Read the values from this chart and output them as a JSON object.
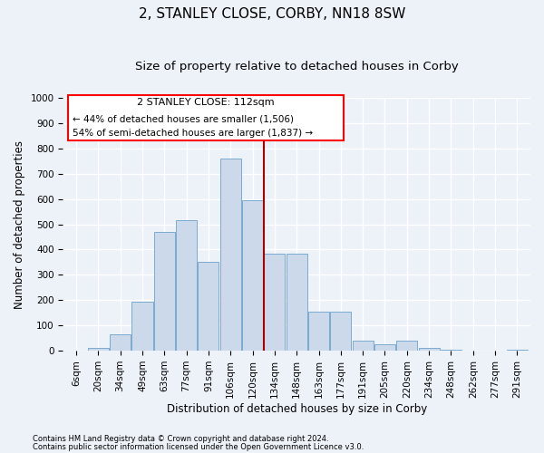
{
  "title": "2, STANLEY CLOSE, CORBY, NN18 8SW",
  "subtitle": "Size of property relative to detached houses in Corby",
  "xlabel": "Distribution of detached houses by size in Corby",
  "ylabel": "Number of detached properties",
  "footnote1": "Contains HM Land Registry data © Crown copyright and database right 2024.",
  "footnote2": "Contains public sector information licensed under the Open Government Licence v3.0.",
  "annotation_title": "2 STANLEY CLOSE: 112sqm",
  "annotation_line1": "← 44% of detached houses are smaller (1,506)",
  "annotation_line2": "54% of semi-detached houses are larger (1,837) →",
  "bar_color": "#ccd9ea",
  "bar_edge_color": "#7aaad0",
  "vline_color": "#aa0000",
  "vline_x": 8.5,
  "categories": [
    "6sqm",
    "20sqm",
    "34sqm",
    "49sqm",
    "63sqm",
    "77sqm",
    "91sqm",
    "106sqm",
    "120sqm",
    "134sqm",
    "148sqm",
    "163sqm",
    "177sqm",
    "191sqm",
    "205sqm",
    "220sqm",
    "234sqm",
    "248sqm",
    "262sqm",
    "277sqm",
    "291sqm"
  ],
  "values": [
    0,
    10,
    65,
    195,
    470,
    515,
    350,
    760,
    595,
    385,
    385,
    155,
    155,
    40,
    25,
    40,
    10,
    5,
    2,
    2,
    5
  ],
  "ylim": [
    0,
    1000
  ],
  "yticks": [
    0,
    100,
    200,
    300,
    400,
    500,
    600,
    700,
    800,
    900,
    1000
  ],
  "background_color": "#edf2f9",
  "grid_color": "#ffffff",
  "title_fontsize": 11,
  "subtitle_fontsize": 9.5,
  "axis_label_fontsize": 8.5,
  "tick_fontsize": 7.5,
  "footnote_fontsize": 6
}
